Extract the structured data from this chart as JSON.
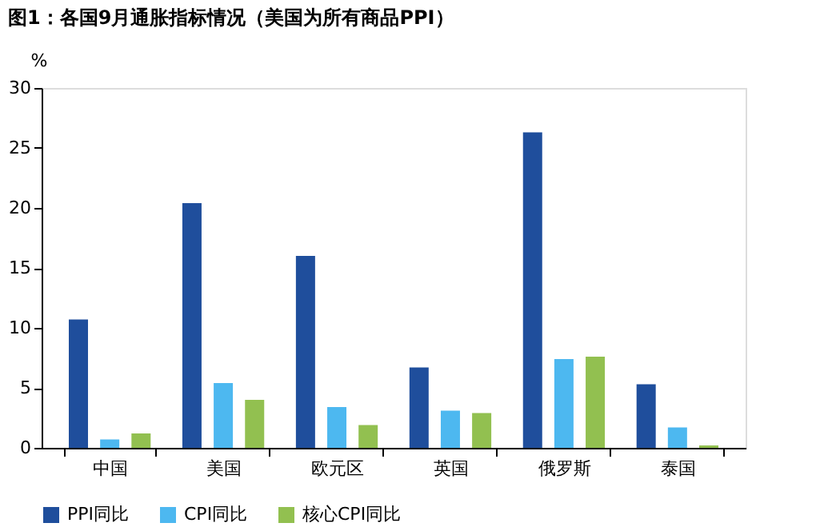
{
  "chart_data": {
    "type": "bar",
    "title": "图1：各国9月通胀指标情况（美国为所有商品PPI）",
    "ylabel": "%",
    "categories": [
      "中国",
      "美国",
      "欧元区",
      "英国",
      "俄罗斯",
      "泰国"
    ],
    "series": [
      {
        "name": "PPI同比",
        "color": "#1f4e9c",
        "values": [
          10.7,
          20.4,
          16.0,
          6.7,
          26.3,
          5.3
        ]
      },
      {
        "name": "CPI同比",
        "color": "#4db8f0",
        "values": [
          0.7,
          5.4,
          3.4,
          3.1,
          7.4,
          1.7
        ]
      },
      {
        "name": "核心CPI同比",
        "color": "#92c050",
        "values": [
          1.2,
          4.0,
          1.9,
          2.9,
          7.6,
          0.2
        ]
      }
    ],
    "ylim": [
      0,
      30
    ],
    "yticks": [
      0,
      5,
      10,
      15,
      20,
      25,
      30
    ],
    "grid": false,
    "legend": "bottom"
  }
}
